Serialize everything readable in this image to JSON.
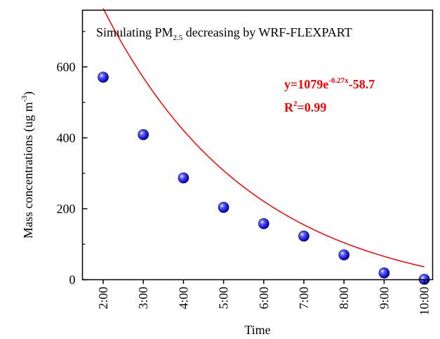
{
  "chart_data": {
    "type": "scatter",
    "title": "",
    "annotation": {
      "text_main": "Simulating PM",
      "text_sub": "2.5",
      "text_rest": " decreasing by WRF-FLEXPART"
    },
    "equation": {
      "line1_prefix": "y=1079e",
      "line1_sup": "-0.27x",
      "line1_suffix": "-58.7",
      "line2_prefix": "R",
      "line2_sup": "2",
      "line2_suffix": "=0.99"
    },
    "xlabel": "Time",
    "ylabel": {
      "main": "Mass concentrations (ug m",
      "sup": "-3",
      "close": ")"
    },
    "categories": [
      "2:00",
      "3:00",
      "4:00",
      "5:00",
      "6:00",
      "7:00",
      "8:00",
      "9:00",
      "10:00"
    ],
    "values": [
      571,
      409,
      287,
      204,
      158,
      123,
      70,
      19,
      1
    ],
    "fit": {
      "a": 1079,
      "b": -0.27,
      "c": -58.7
    },
    "ylim": [
      0,
      760
    ],
    "yticks": [
      0,
      200,
      400,
      600
    ],
    "colors": {
      "points": "#1a1adb",
      "fit": "#ff0000",
      "equation": "#ff0000",
      "axis": "#000000"
    },
    "grid": false,
    "legend": "none"
  }
}
